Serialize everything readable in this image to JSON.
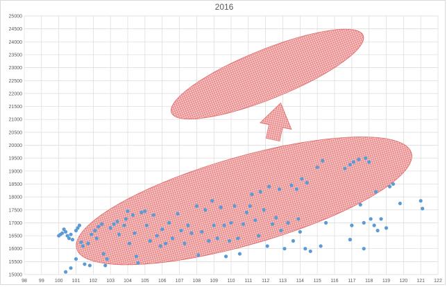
{
  "chart_data": {
    "type": "scatter",
    "title": "2016",
    "xlabel": "",
    "ylabel": "",
    "xlim": [
      98,
      122
    ],
    "ylim": [
      15000,
      25000
    ],
    "x_ticks": [
      "98",
      "99",
      "100",
      "101",
      "102",
      "103",
      "104",
      "105",
      "106",
      "107",
      "108",
      "109",
      "110",
      "111",
      "112",
      "113",
      "114",
      "115",
      "116",
      "117",
      "118",
      "119",
      "120",
      "121",
      "122"
    ],
    "y_ticks": [
      "15000",
      "15500",
      "16000",
      "16500",
      "17000",
      "17500",
      "18000",
      "18500",
      "19000",
      "19500",
      "20000",
      "20500",
      "21000",
      "21500",
      "22000",
      "22500",
      "23000",
      "23500",
      "24000",
      "24500",
      "25000"
    ],
    "grid": true,
    "legend": "none",
    "marker_color": "#5b9bd5",
    "annotation_color": "#e06666",
    "annotations": [
      {
        "kind": "ellipse",
        "cx": 110.75,
        "cy": 17850,
        "rx_data": 10.1,
        "ry_data": 1700,
        "angle": -16
      },
      {
        "kind": "ellipse",
        "cx": 112.1,
        "cy": 22750,
        "rx_data": 6.0,
        "ry_data": 950,
        "angle": -22
      },
      {
        "kind": "arrow",
        "x": 112.65,
        "y_from": 20200,
        "y_to": 21650
      }
    ],
    "points": [
      {
        "x": 100.0,
        "y": 16500
      },
      {
        "x": 100.1,
        "y": 16550
      },
      {
        "x": 100.2,
        "y": 16600
      },
      {
        "x": 100.3,
        "y": 16750
      },
      {
        "x": 100.4,
        "y": 16650
      },
      {
        "x": 100.5,
        "y": 16500
      },
      {
        "x": 100.6,
        "y": 16400
      },
      {
        "x": 100.7,
        "y": 16550
      },
      {
        "x": 100.8,
        "y": 16350
      },
      {
        "x": 101.0,
        "y": 16700
      },
      {
        "x": 101.1,
        "y": 16800
      },
      {
        "x": 101.2,
        "y": 16900
      },
      {
        "x": 101.3,
        "y": 16250
      },
      {
        "x": 101.4,
        "y": 16100
      },
      {
        "x": 100.4,
        "y": 15100
      },
      {
        "x": 100.7,
        "y": 15250
      },
      {
        "x": 101.0,
        "y": 15600
      },
      {
        "x": 101.5,
        "y": 15400
      },
      {
        "x": 101.8,
        "y": 15350
      },
      {
        "x": 101.7,
        "y": 16200
      },
      {
        "x": 101.9,
        "y": 16550
      },
      {
        "x": 102.1,
        "y": 16700
      },
      {
        "x": 102.3,
        "y": 16850
      },
      {
        "x": 102.5,
        "y": 16950
      },
      {
        "x": 102.2,
        "y": 16400
      },
      {
        "x": 102.6,
        "y": 15800
      },
      {
        "x": 102.8,
        "y": 15600
      },
      {
        "x": 102.7,
        "y": 15350
      },
      {
        "x": 103.0,
        "y": 16800
      },
      {
        "x": 103.2,
        "y": 16950
      },
      {
        "x": 103.4,
        "y": 17050
      },
      {
        "x": 103.5,
        "y": 16550
      },
      {
        "x": 103.8,
        "y": 16900
      },
      {
        "x": 103.9,
        "y": 17150
      },
      {
        "x": 104.0,
        "y": 17450
      },
      {
        "x": 104.1,
        "y": 16200
      },
      {
        "x": 104.3,
        "y": 17300
      },
      {
        "x": 104.4,
        "y": 16600
      },
      {
        "x": 104.5,
        "y": 15700
      },
      {
        "x": 104.6,
        "y": 15450
      },
      {
        "x": 104.8,
        "y": 17400
      },
      {
        "x": 105.0,
        "y": 17450
      },
      {
        "x": 105.1,
        "y": 16900
      },
      {
        "x": 105.3,
        "y": 16300
      },
      {
        "x": 105.5,
        "y": 17300
      },
      {
        "x": 105.7,
        "y": 16500
      },
      {
        "x": 105.9,
        "y": 16100
      },
      {
        "x": 106.0,
        "y": 16750
      },
      {
        "x": 106.2,
        "y": 16200
      },
      {
        "x": 106.4,
        "y": 17000
      },
      {
        "x": 106.6,
        "y": 16400
      },
      {
        "x": 106.9,
        "y": 17350
      },
      {
        "x": 107.1,
        "y": 16700
      },
      {
        "x": 107.3,
        "y": 16200
      },
      {
        "x": 107.5,
        "y": 16900
      },
      {
        "x": 107.7,
        "y": 16600
      },
      {
        "x": 108.0,
        "y": 17650
      },
      {
        "x": 108.1,
        "y": 15750
      },
      {
        "x": 108.3,
        "y": 16650
      },
      {
        "x": 108.5,
        "y": 17500
      },
      {
        "x": 108.7,
        "y": 16300
      },
      {
        "x": 108.9,
        "y": 17850
      },
      {
        "x": 109.0,
        "y": 16900
      },
      {
        "x": 109.2,
        "y": 16400
      },
      {
        "x": 109.4,
        "y": 17600
      },
      {
        "x": 109.6,
        "y": 16900
      },
      {
        "x": 109.7,
        "y": 15700
      },
      {
        "x": 109.9,
        "y": 16300
      },
      {
        "x": 110.0,
        "y": 17000
      },
      {
        "x": 110.2,
        "y": 17650
      },
      {
        "x": 110.4,
        "y": 16400
      },
      {
        "x": 110.5,
        "y": 15800
      },
      {
        "x": 110.7,
        "y": 16950
      },
      {
        "x": 110.9,
        "y": 17400
      },
      {
        "x": 111.1,
        "y": 17650
      },
      {
        "x": 111.2,
        "y": 18100
      },
      {
        "x": 111.4,
        "y": 17100
      },
      {
        "x": 111.6,
        "y": 16500
      },
      {
        "x": 111.7,
        "y": 18200
      },
      {
        "x": 111.9,
        "y": 17500
      },
      {
        "x": 112.1,
        "y": 16100
      },
      {
        "x": 112.2,
        "y": 18400
      },
      {
        "x": 112.4,
        "y": 16950
      },
      {
        "x": 112.6,
        "y": 17200
      },
      {
        "x": 112.8,
        "y": 18300
      },
      {
        "x": 112.9,
        "y": 16700
      },
      {
        "x": 113.1,
        "y": 16000
      },
      {
        "x": 113.3,
        "y": 17000
      },
      {
        "x": 113.5,
        "y": 18450
      },
      {
        "x": 113.6,
        "y": 16300
      },
      {
        "x": 113.8,
        "y": 18300
      },
      {
        "x": 113.9,
        "y": 17150
      },
      {
        "x": 114.0,
        "y": 16650
      },
      {
        "x": 114.1,
        "y": 18700
      },
      {
        "x": 114.3,
        "y": 16000
      },
      {
        "x": 114.4,
        "y": 18550
      },
      {
        "x": 114.6,
        "y": 15900
      },
      {
        "x": 115.0,
        "y": 19150
      },
      {
        "x": 115.2,
        "y": 16100
      },
      {
        "x": 115.3,
        "y": 19400
      },
      {
        "x": 115.5,
        "y": 17000
      },
      {
        "x": 116.6,
        "y": 19100
      },
      {
        "x": 116.9,
        "y": 19250
      },
      {
        "x": 117.0,
        "y": 16900
      },
      {
        "x": 116.9,
        "y": 16350
      },
      {
        "x": 117.1,
        "y": 19350
      },
      {
        "x": 117.4,
        "y": 19450
      },
      {
        "x": 117.5,
        "y": 17700
      },
      {
        "x": 117.7,
        "y": 17000
      },
      {
        "x": 117.7,
        "y": 16000
      },
      {
        "x": 117.8,
        "y": 19500
      },
      {
        "x": 118.0,
        "y": 19350
      },
      {
        "x": 118.1,
        "y": 17150
      },
      {
        "x": 118.3,
        "y": 16900
      },
      {
        "x": 118.4,
        "y": 18200
      },
      {
        "x": 118.5,
        "y": 16700
      },
      {
        "x": 118.7,
        "y": 17150
      },
      {
        "x": 119.0,
        "y": 16800
      },
      {
        "x": 119.2,
        "y": 18400
      },
      {
        "x": 119.4,
        "y": 18500
      },
      {
        "x": 119.8,
        "y": 17750
      },
      {
        "x": 121.0,
        "y": 17850
      },
      {
        "x": 121.1,
        "y": 17550
      }
    ]
  }
}
